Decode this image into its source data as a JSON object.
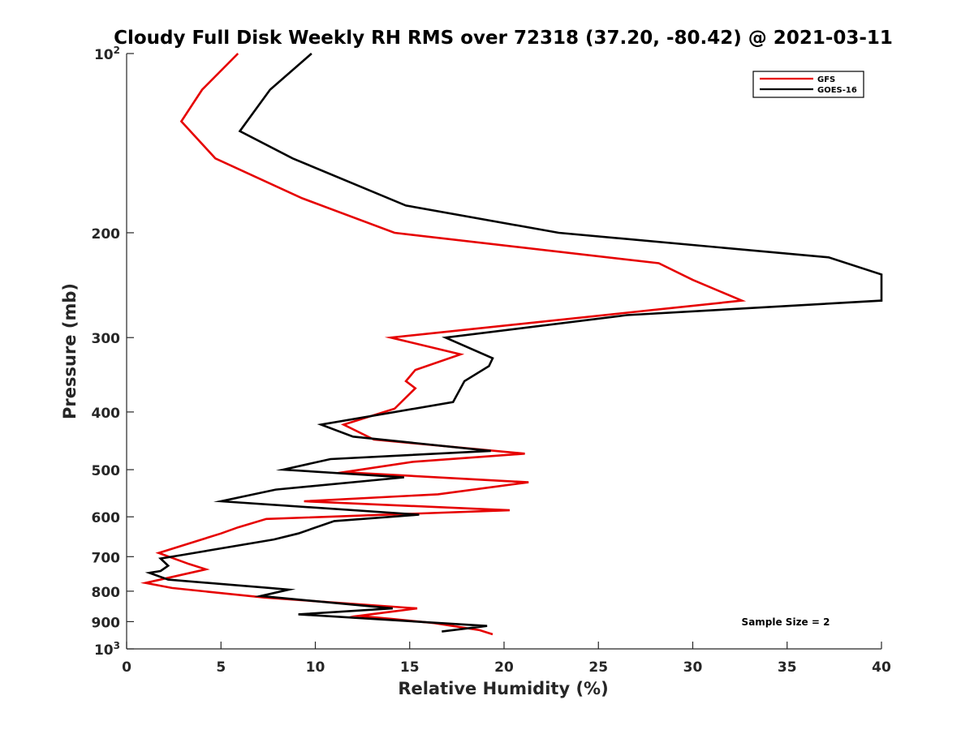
{
  "chart_data": {
    "type": "line",
    "title": "Cloudy Full Disk Weekly RH RMS over 72318 (37.20, -80.42) @ 2021-03-11",
    "xlabel": "Relative Humidity (%)",
    "ylabel": "Pressure (mb)",
    "xlim": [
      0,
      40
    ],
    "ylim": [
      100,
      1000
    ],
    "yscale": "log",
    "y_reversed": true,
    "x_ticks": [
      0,
      5,
      10,
      15,
      20,
      25,
      30,
      35,
      40
    ],
    "y_ticks": [
      {
        "value": 100,
        "base": "10",
        "exp": "2"
      },
      {
        "value": 200,
        "label": "200"
      },
      {
        "value": 300,
        "label": "300"
      },
      {
        "value": 400,
        "label": "400"
      },
      {
        "value": 500,
        "label": "500"
      },
      {
        "value": 600,
        "label": "600"
      },
      {
        "value": 700,
        "label": "700"
      },
      {
        "value": 800,
        "label": "800"
      },
      {
        "value": 900,
        "label": "900"
      },
      {
        "value": 1000,
        "base": "10",
        "exp": "3"
      }
    ],
    "legend": {
      "position": "top-right",
      "entries": [
        "GFS",
        "GOES-16"
      ]
    },
    "annotation": "Sample Size = 2",
    "series": [
      {
        "name": "GFS",
        "color": "#e60000",
        "points": [
          [
            5.9,
            100
          ],
          [
            4.0,
            115
          ],
          [
            2.9,
            130
          ],
          [
            4.7,
            150
          ],
          [
            9.3,
            175
          ],
          [
            14.2,
            200
          ],
          [
            28.2,
            225
          ],
          [
            30.0,
            240
          ],
          [
            32.6,
            260
          ],
          [
            14.0,
            300
          ],
          [
            17.7,
            320
          ],
          [
            15.3,
            340
          ],
          [
            14.8,
            355
          ],
          [
            15.3,
            365
          ],
          [
            14.2,
            395
          ],
          [
            11.5,
            420
          ],
          [
            13.1,
            445
          ],
          [
            21.1,
            470
          ],
          [
            15.2,
            485
          ],
          [
            11.5,
            505
          ],
          [
            21.3,
            525
          ],
          [
            16.5,
            550
          ],
          [
            9.4,
            565
          ],
          [
            20.3,
            585
          ],
          [
            7.4,
            605
          ],
          [
            5.9,
            625
          ],
          [
            5.0,
            640
          ],
          [
            1.7,
            690
          ],
          [
            3.3,
            720
          ],
          [
            4.2,
            735
          ],
          [
            1.0,
            775
          ],
          [
            2.4,
            790
          ],
          [
            7.3,
            820
          ],
          [
            15.4,
            855
          ],
          [
            12.3,
            880
          ],
          [
            14.0,
            890
          ],
          [
            16.3,
            905
          ],
          [
            18.7,
            930
          ],
          [
            19.4,
            945
          ]
        ]
      },
      {
        "name": "GOES-16",
        "color": "#000000",
        "points": [
          [
            9.8,
            100
          ],
          [
            7.6,
            115
          ],
          [
            6.0,
            135
          ],
          [
            8.8,
            150
          ],
          [
            14.8,
            180
          ],
          [
            22.9,
            200
          ],
          [
            37.2,
            220
          ],
          [
            40.0,
            235
          ],
          [
            40.0,
            260
          ],
          [
            26.5,
            275
          ],
          [
            16.9,
            300
          ],
          [
            19.4,
            325
          ],
          [
            19.2,
            335
          ],
          [
            17.9,
            355
          ],
          [
            17.3,
            385
          ],
          [
            10.3,
            420
          ],
          [
            12.0,
            440
          ],
          [
            19.3,
            465
          ],
          [
            10.8,
            480
          ],
          [
            8.3,
            500
          ],
          [
            14.7,
            515
          ],
          [
            7.9,
            540
          ],
          [
            5.0,
            565
          ],
          [
            15.5,
            595
          ],
          [
            11.0,
            610
          ],
          [
            9.1,
            640
          ],
          [
            7.8,
            655
          ],
          [
            3.0,
            695
          ],
          [
            1.8,
            705
          ],
          [
            2.2,
            725
          ],
          [
            1.8,
            740
          ],
          [
            1.2,
            745
          ],
          [
            2.2,
            765
          ],
          [
            7.6,
            790
          ],
          [
            8.6,
            795
          ],
          [
            7.1,
            815
          ],
          [
            14.1,
            855
          ],
          [
            9.1,
            875
          ],
          [
            19.1,
            915
          ],
          [
            16.7,
            935
          ]
        ]
      }
    ]
  }
}
